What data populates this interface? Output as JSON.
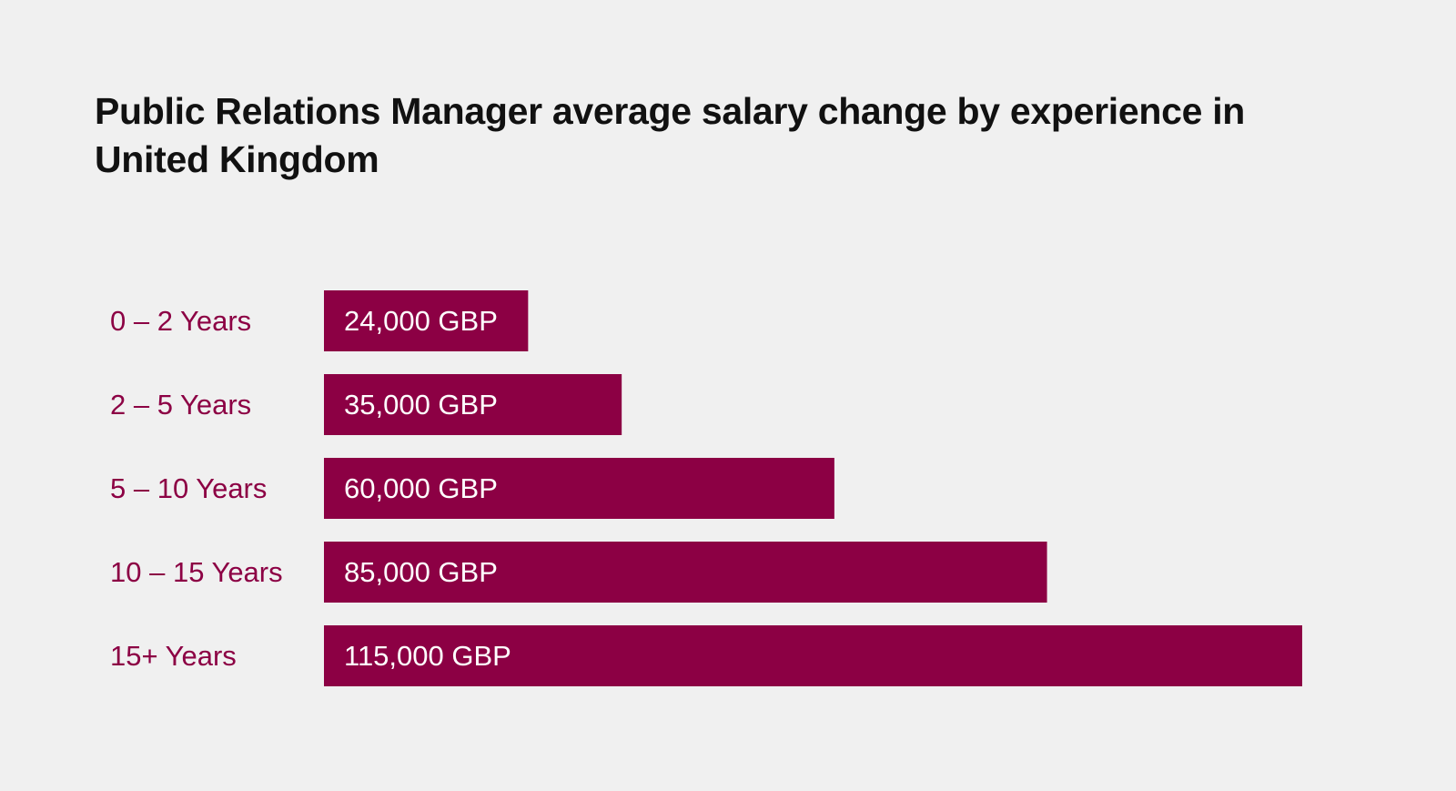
{
  "colors": {
    "background": "#f0f0f0",
    "bar": "#8c0044",
    "category_text": "#8c0044",
    "title_text": "#111111",
    "value_text": "#ffffff"
  },
  "chart_data": {
    "type": "bar",
    "orientation": "horizontal",
    "title": "Public Relations Manager average salary change by experience in United Kingdom",
    "categories": [
      "0 – 2 Years",
      "2 – 5 Years",
      "5 – 10 Years",
      "10 – 15 Years",
      "15+ Years"
    ],
    "values": [
      24000,
      35000,
      60000,
      85000,
      115000
    ],
    "value_labels": [
      "24,000 GBP",
      "35,000 GBP",
      "60,000 GBP",
      "85,000 GBP",
      "115,000 GBP"
    ],
    "unit": "GBP",
    "xlim": [
      0,
      115000
    ],
    "grid": false,
    "legend": "none"
  }
}
